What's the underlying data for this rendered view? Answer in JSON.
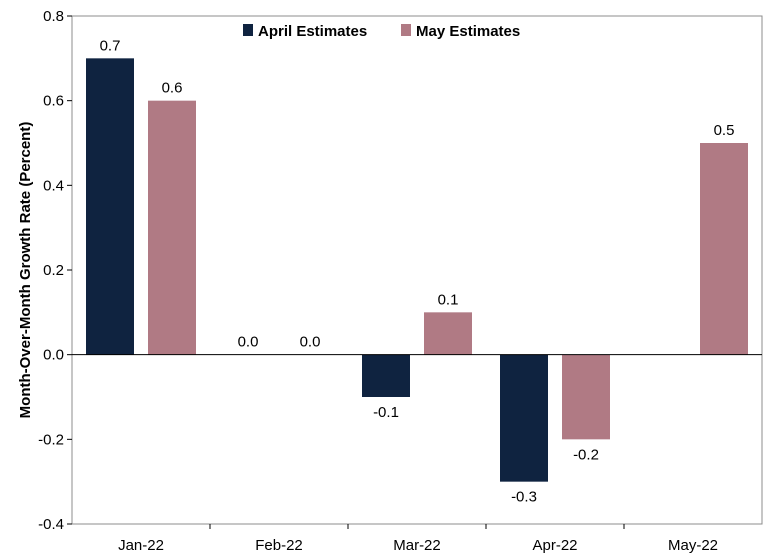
{
  "chart_data": {
    "type": "bar",
    "title": "",
    "xlabel": "",
    "ylabel": "Month-Over-Month Growth Rate (Percent)",
    "categories": [
      "Jan-22",
      "Feb-22",
      "Mar-22",
      "Apr-22",
      "May-22"
    ],
    "series": [
      {
        "name": "April Estimates",
        "color": "#0f2340",
        "values": [
          0.7,
          0.0,
          -0.1,
          -0.3,
          null
        ],
        "labels": [
          "0.7",
          "0.0",
          "-0.1",
          "-0.3",
          ""
        ]
      },
      {
        "name": "May Estimates",
        "color": "#b07a84",
        "values": [
          0.6,
          0.0,
          0.1,
          -0.2,
          0.5
        ],
        "labels": [
          "0.6",
          "0.0",
          "0.1",
          "-0.2",
          "0.5"
        ]
      }
    ],
    "ylim": [
      -0.4,
      0.8
    ],
    "yticks": [
      -0.4,
      -0.2,
      0.0,
      0.2,
      0.4,
      0.6,
      0.8
    ],
    "ytick_labels": [
      "-0.4",
      "-0.2",
      "0.0",
      "0.2",
      "0.4",
      "0.6",
      "0.8"
    ],
    "grid": false,
    "legend": "top-center"
  }
}
